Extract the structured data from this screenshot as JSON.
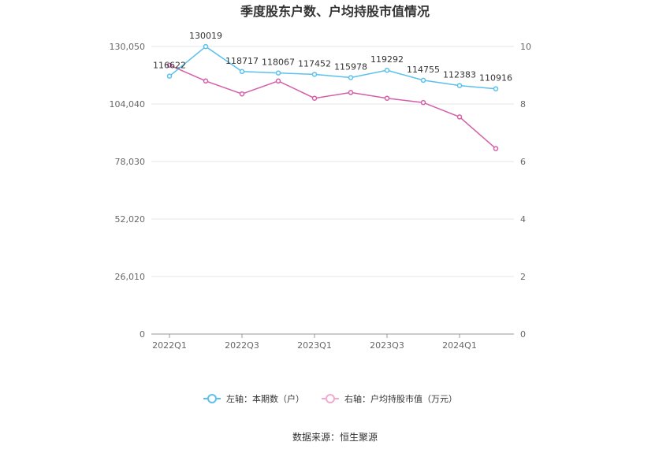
{
  "chart_data": {
    "type": "line",
    "title": "季度股东户数、户均持股市值情况",
    "categories": [
      "2022Q1",
      "2022Q2",
      "2022Q3",
      "2022Q4",
      "2023Q1",
      "2023Q2",
      "2023Q3",
      "2023Q4",
      "2024Q1",
      "2024Q2"
    ],
    "x_tick_labels": [
      "2022Q1",
      "2022Q3",
      "2023Q1",
      "2023Q3",
      "2024Q1"
    ],
    "left_axis": {
      "min": 0,
      "max": 130050,
      "ticks": [
        "0",
        "26,010",
        "52,020",
        "78,030",
        "104,040",
        "130,050"
      ]
    },
    "right_axis": {
      "min": 0,
      "max": 10,
      "ticks": [
        "0",
        "2",
        "4",
        "6",
        "8",
        "10"
      ]
    },
    "series": [
      {
        "name": "左轴：本期数（户）",
        "axis": "left",
        "color": "#5bc0ee",
        "values": [
          116622,
          130019,
          118717,
          118067,
          117452,
          115978,
          119292,
          114755,
          112383,
          110916
        ],
        "labels": [
          "116622",
          "130019",
          "118717",
          "118067",
          "117452",
          "115978",
          "119292",
          "114755",
          "112383",
          "110916"
        ]
      },
      {
        "name": "右轴：户均持股市值（万元）",
        "axis": "right",
        "color": "#d45fa8",
        "values": [
          9.35,
          8.8,
          8.35,
          8.8,
          8.2,
          8.4,
          8.2,
          8.05,
          7.55,
          6.45
        ]
      }
    ],
    "grid": true,
    "legend_position": "bottom",
    "source": "数据来源：恒生聚源"
  }
}
